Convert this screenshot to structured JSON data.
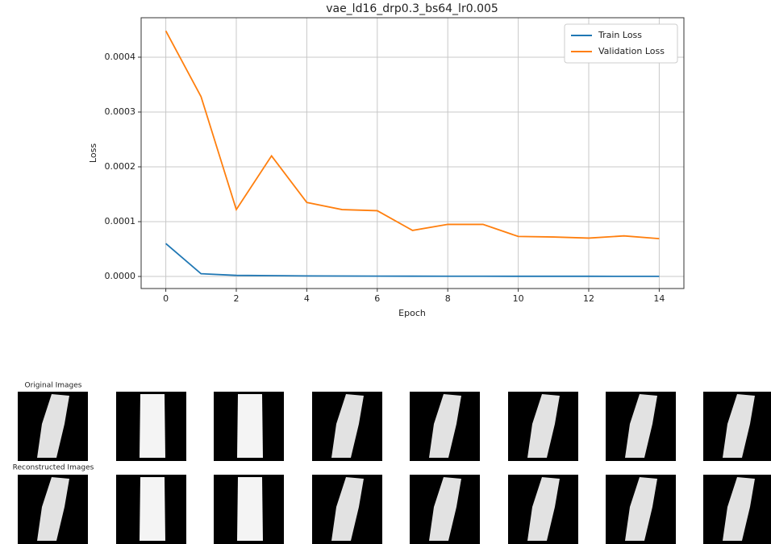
{
  "chart_data": {
    "type": "line",
    "title": "vae_ld16_drp0.3_bs64_lr0.005",
    "x_label": "Epoch",
    "y_label": "Loss",
    "x": [
      0,
      1,
      2,
      3,
      4,
      5,
      6,
      7,
      8,
      9,
      10,
      11,
      12,
      13,
      14
    ],
    "series": [
      {
        "name": "Train Loss",
        "color": "#1f77b4",
        "values": [
          6e-05,
          5e-06,
          2e-06,
          1.5e-06,
          1e-06,
          8e-07,
          6e-07,
          5e-07,
          4e-07,
          4e-07,
          3e-07,
          3e-07,
          3e-07,
          2e-07,
          2e-07
        ]
      },
      {
        "name": "Validation Loss",
        "color": "#ff7f0e",
        "values": [
          0.000448,
          0.000328,
          0.000122,
          0.00022,
          0.000135,
          0.000122,
          0.00012,
          8.4e-05,
          9.5e-05,
          9.5e-05,
          7.3e-05,
          7.2e-05,
          7e-05,
          7.4e-05,
          6.9e-05
        ]
      }
    ],
    "xlim": [
      -0.7,
      14.7
    ],
    "xticks": [
      0,
      2,
      4,
      6,
      8,
      10,
      12,
      14
    ],
    "ylim": [
      -2.2e-05,
      0.000472
    ],
    "yticks": [
      {
        "value": 0,
        "label": "0.0000"
      },
      {
        "value": 0.0001,
        "label": "0.0001"
      },
      {
        "value": 0.0002,
        "label": "0.0002"
      },
      {
        "value": 0.0003,
        "label": "0.0003"
      },
      {
        "value": 0.0004,
        "label": "0.0004"
      }
    ],
    "grid": true,
    "legend": "upper right"
  },
  "images": {
    "original_label": "Original Images",
    "reconstructed_label": "Reconstructed Images"
  }
}
